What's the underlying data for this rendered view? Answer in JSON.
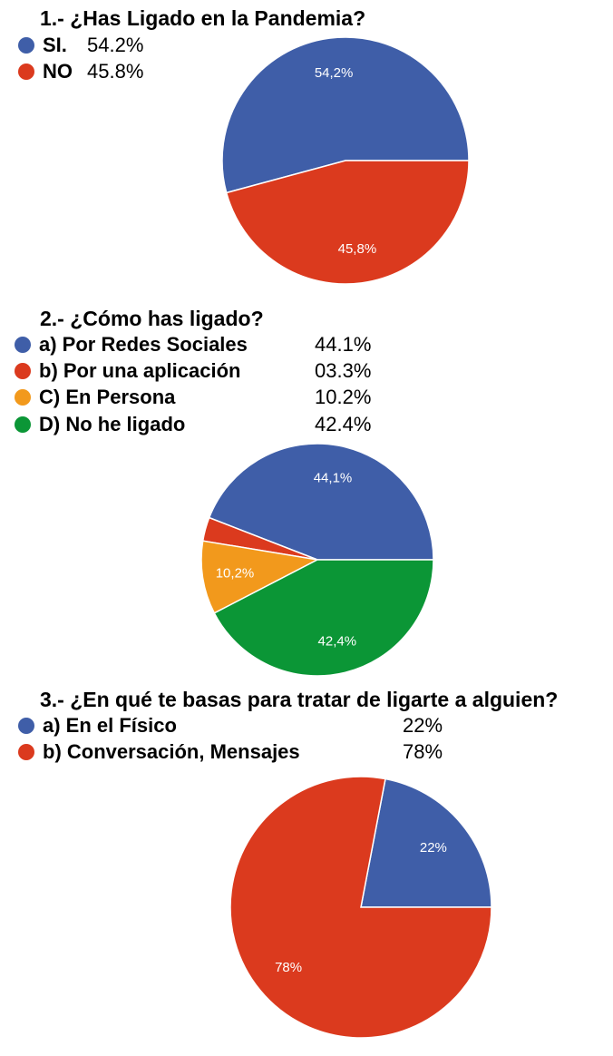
{
  "chart_data": [
    {
      "type": "pie",
      "title": "1.- ¿Has Ligado en la Pandemia?",
      "legend": [
        {
          "label": "SI.",
          "value_text": "54.2%"
        },
        {
          "label": "NO",
          "value_text": "45.8%"
        }
      ],
      "slices": [
        {
          "label": "SI.",
          "value": 54.2,
          "data_label": "54,2%",
          "color": "#3f5ea8"
        },
        {
          "label": "NO",
          "value": 45.8,
          "data_label": "45,8%",
          "color": "#db3a1e"
        }
      ]
    },
    {
      "type": "pie",
      "title": "2.- ¿Cómo has ligado?",
      "legend": [
        {
          "label": "a) Por Redes Sociales",
          "value_text": "44.1%"
        },
        {
          "label": "b) Por una aplicación",
          "value_text": "03.3%"
        },
        {
          "label": "C) En Persona",
          "value_text": "10.2%"
        },
        {
          "label": "D) No he ligado",
          "value_text": "42.4%"
        }
      ],
      "slices": [
        {
          "label": "a) Por Redes Sociales",
          "value": 44.1,
          "data_label": "44,1%",
          "color": "#3f5ea8"
        },
        {
          "label": "b) Por una aplicación",
          "value": 3.3,
          "data_label": "",
          "color": "#db3a1e"
        },
        {
          "label": "C) En Persona",
          "value": 10.2,
          "data_label": "10,2%",
          "color": "#f2991c"
        },
        {
          "label": "D) No he ligado",
          "value": 42.4,
          "data_label": "42,4%",
          "color": "#0b9636"
        }
      ]
    },
    {
      "type": "pie",
      "title": "3.- ¿En qué te basas para tratar de ligarte a alguien?",
      "legend": [
        {
          "label": "a) En el Físico",
          "value_text": "22%"
        },
        {
          "label": "b) Conversación, Mensajes",
          "value_text": "78%"
        }
      ],
      "slices": [
        {
          "label": "a) En el Físico",
          "value": 22,
          "data_label": "22%",
          "color": "#3f5ea8"
        },
        {
          "label": "b) Conversación, Mensajes",
          "value": 78,
          "data_label": "78%",
          "color": "#db3a1e"
        }
      ]
    }
  ]
}
